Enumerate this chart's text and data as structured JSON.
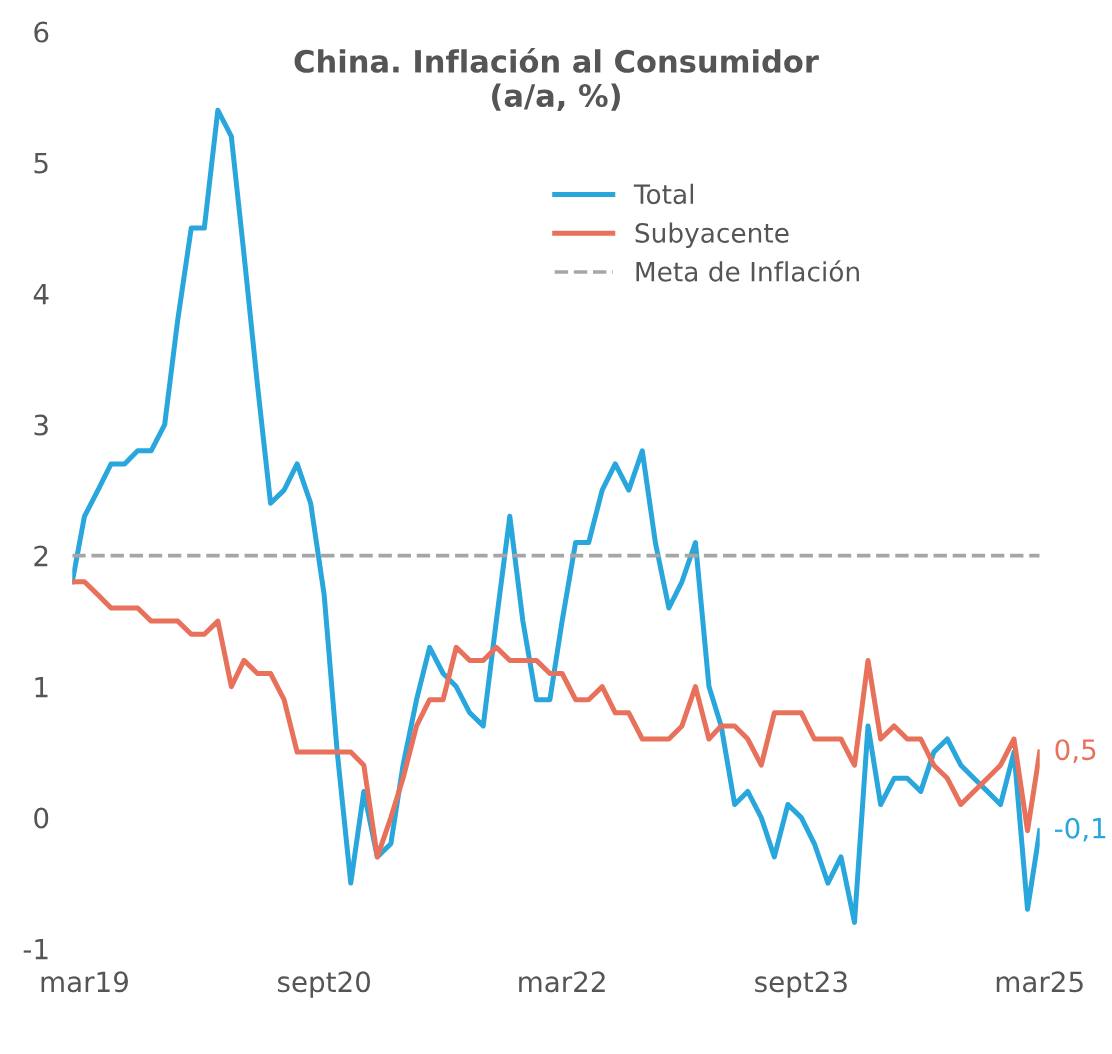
{
  "chart_data": {
    "type": "line",
    "title": "China. Inflación al Consumidor\n(a/a, %)",
    "x": [
      "2019-02",
      "2019-03",
      "2019-04",
      "2019-05",
      "2019-06",
      "2019-07",
      "2019-08",
      "2019-09",
      "2019-10",
      "2019-11",
      "2019-12",
      "2020-01",
      "2020-02",
      "2020-03",
      "2020-04",
      "2020-05",
      "2020-06",
      "2020-07",
      "2020-08",
      "2020-09",
      "2020-10",
      "2020-11",
      "2020-12",
      "2021-01",
      "2021-02",
      "2021-03",
      "2021-04",
      "2021-05",
      "2021-06",
      "2021-07",
      "2021-08",
      "2021-09",
      "2021-10",
      "2021-11",
      "2021-12",
      "2022-01",
      "2022-02",
      "2022-03",
      "2022-04",
      "2022-05",
      "2022-06",
      "2022-07",
      "2022-08",
      "2022-09",
      "2022-10",
      "2022-11",
      "2022-12",
      "2023-01",
      "2023-02",
      "2023-03",
      "2023-04",
      "2023-05",
      "2023-06",
      "2023-07",
      "2023-08",
      "2023-09",
      "2023-10",
      "2023-11",
      "2023-12",
      "2024-01",
      "2024-02",
      "2024-03",
      "2024-04",
      "2024-05",
      "2024-06",
      "2024-07",
      "2024-08",
      "2024-09",
      "2024-10",
      "2024-11",
      "2024-12",
      "2025-01",
      "2025-02",
      "2025-03"
    ],
    "series": [
      {
        "name": "Total",
        "color": "#29a6dc",
        "values": [
          1.8,
          2.3,
          2.5,
          2.7,
          2.7,
          2.8,
          2.8,
          3.0,
          3.8,
          4.5,
          4.5,
          5.4,
          5.2,
          4.3,
          3.3,
          2.4,
          2.5,
          2.7,
          2.4,
          1.7,
          0.5,
          -0.5,
          0.2,
          -0.3,
          -0.2,
          0.4,
          0.9,
          1.3,
          1.1,
          1.0,
          0.8,
          0.7,
          1.5,
          2.3,
          1.5,
          0.9,
          0.9,
          1.5,
          2.1,
          2.1,
          2.5,
          2.7,
          2.5,
          2.8,
          2.1,
          1.6,
          1.8,
          2.1,
          1.0,
          0.7,
          0.1,
          0.2,
          0.0,
          -0.3,
          0.1,
          0.0,
          -0.2,
          -0.5,
          -0.3,
          -0.8,
          0.7,
          0.1,
          0.3,
          0.3,
          0.2,
          0.5,
          0.6,
          0.4,
          0.3,
          0.2,
          0.1,
          0.5,
          -0.7,
          -0.1
        ],
        "value_labels": [
          null,
          null,
          null,
          null,
          null,
          null,
          null,
          null,
          null,
          null,
          null,
          null,
          null,
          null,
          null,
          null,
          null,
          null,
          null,
          null,
          null,
          null,
          null,
          null,
          null,
          null,
          null,
          null,
          null,
          null,
          null,
          null,
          null,
          null,
          null,
          null,
          null,
          null,
          null,
          null,
          null,
          null,
          null,
          null,
          null,
          null,
          null,
          null,
          null,
          null,
          null,
          null,
          null,
          null,
          null,
          null,
          null,
          null,
          null,
          null,
          null,
          null,
          null,
          null,
          null,
          null,
          null,
          null,
          null,
          null,
          null,
          null,
          null,
          "-0,1"
        ]
      },
      {
        "name": "Subyacente",
        "color": "#e8715c",
        "values": [
          1.8,
          1.8,
          1.7,
          1.6,
          1.6,
          1.6,
          1.5,
          1.5,
          1.5,
          1.4,
          1.4,
          1.5,
          1.0,
          1.2,
          1.1,
          1.1,
          0.9,
          0.5,
          0.5,
          0.5,
          0.5,
          0.5,
          0.4,
          -0.3,
          0.0,
          0.3,
          0.7,
          0.9,
          0.9,
          1.3,
          1.2,
          1.2,
          1.3,
          1.2,
          1.2,
          1.2,
          1.1,
          1.1,
          0.9,
          0.9,
          1.0,
          0.8,
          0.8,
          0.6,
          0.6,
          0.6,
          0.7,
          1.0,
          0.6,
          0.7,
          0.7,
          0.6,
          0.4,
          0.8,
          0.8,
          0.8,
          0.6,
          0.6,
          0.6,
          0.4,
          1.2,
          0.6,
          0.7,
          0.6,
          0.6,
          0.4,
          0.3,
          0.1,
          0.2,
          0.3,
          0.4,
          0.6,
          -0.1,
          0.5
        ],
        "value_labels": [
          null,
          null,
          null,
          null,
          null,
          null,
          null,
          null,
          null,
          null,
          null,
          null,
          null,
          null,
          null,
          null,
          null,
          null,
          null,
          null,
          null,
          null,
          null,
          null,
          null,
          null,
          null,
          null,
          null,
          null,
          null,
          null,
          null,
          null,
          null,
          null,
          null,
          null,
          null,
          null,
          null,
          null,
          null,
          null,
          null,
          null,
          null,
          null,
          null,
          null,
          null,
          null,
          null,
          null,
          null,
          null,
          null,
          null,
          null,
          null,
          null,
          null,
          null,
          null,
          null,
          null,
          null,
          null,
          null,
          null,
          null,
          null,
          null,
          "0,5"
        ]
      }
    ],
    "ref_lines": [
      {
        "axis": "y",
        "value": 2,
        "label": "Meta de Inflación",
        "color": "#a6a6a6",
        "line_style": "dashed"
      }
    ],
    "xlim": [
      "2019-02",
      "2025-03"
    ],
    "xticks": [
      {
        "value": "2019-03",
        "label": "mar19"
      },
      {
        "value": "2020-09",
        "label": "sept20"
      },
      {
        "value": "2022-03",
        "label": "mar22"
      },
      {
        "value": "2023-09",
        "label": "sept23"
      },
      {
        "value": "2025-03",
        "label": "mar25"
      }
    ],
    "ylim": [
      -1,
      6
    ],
    "yticks": [
      -1,
      0,
      1,
      2,
      3,
      4,
      5,
      6
    ],
    "grid": false,
    "legend": "top right",
    "marker": "none",
    "line_style": "solid"
  }
}
